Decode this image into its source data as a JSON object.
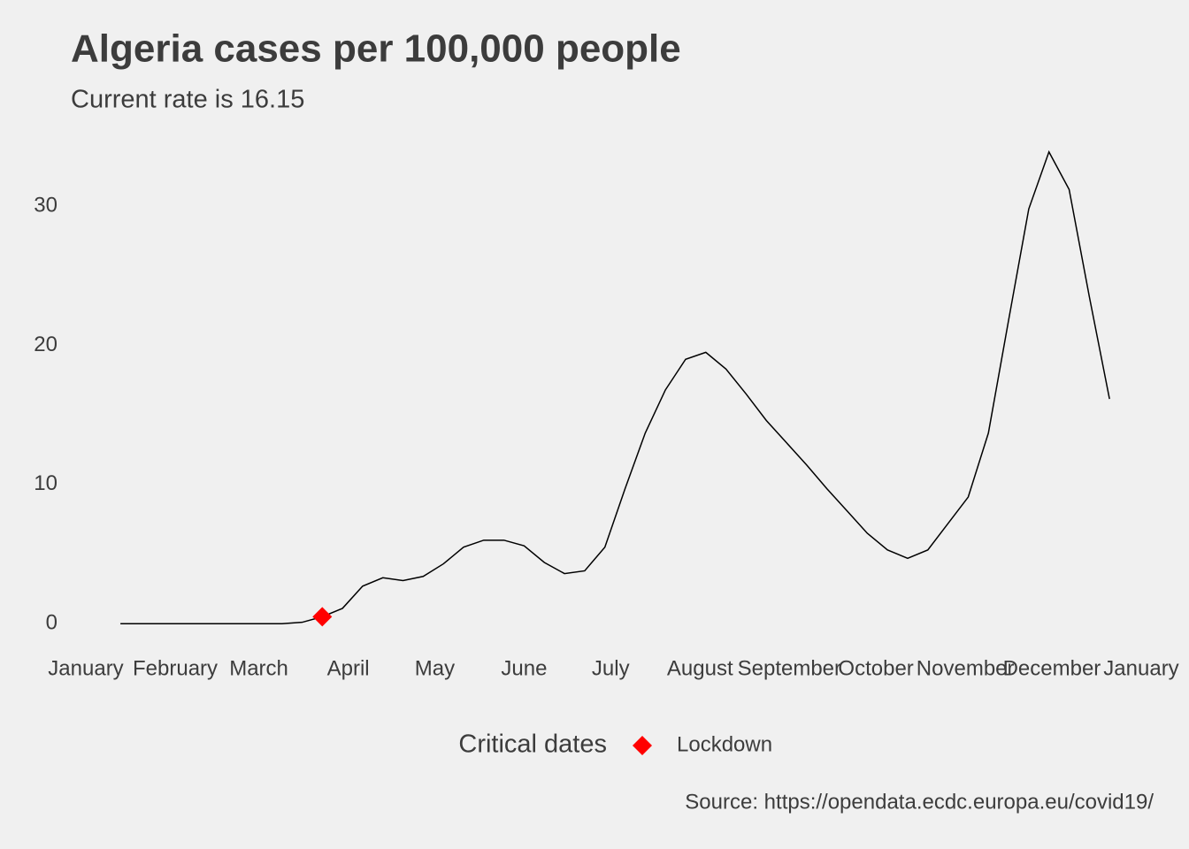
{
  "chart_data": {
    "type": "line",
    "title": "Algeria cases per 100,000 people",
    "subtitle": "Current rate is  16.15",
    "caption": "Source: https://opendata.ecdc.europa.eu/covid19/",
    "legend_title": "Critical dates",
    "x": [
      12,
      19,
      26,
      33,
      40,
      47,
      54,
      61,
      68,
      75,
      82,
      89,
      96,
      103,
      110,
      117,
      124,
      131,
      138,
      145,
      152,
      159,
      166,
      173,
      180,
      187,
      194,
      201,
      208,
      215,
      222,
      229,
      236,
      243,
      250,
      257,
      264,
      271,
      278,
      285,
      292,
      299,
      306,
      313,
      320,
      327,
      334,
      341,
      348,
      355
    ],
    "series": [
      {
        "color": "#000000",
        "values": [
          0,
          0,
          0,
          0,
          0,
          0,
          0,
          0,
          0,
          0.1,
          0.5,
          1.1,
          2.7,
          3.3,
          3.1,
          3.4,
          4.3,
          5.5,
          6.0,
          6.0,
          5.6,
          4.4,
          3.6,
          3.8,
          5.5,
          9.7,
          13.7,
          16.8,
          19.0,
          19.5,
          18.3,
          16.5,
          14.6,
          13.0,
          11.4,
          9.7,
          8.1,
          6.5,
          5.3,
          4.7,
          5.3,
          7.2,
          9.1,
          13.7,
          21.8,
          29.8,
          33.9,
          31.2,
          23.5,
          16.15
        ]
      },
      {
        "name": "Lockdown",
        "color": "#ff0000",
        "x": [
          82
        ],
        "values": [
          0.5
        ]
      }
    ],
    "xlim": [
      0,
      366
    ],
    "xticks": [
      {
        "value": 0,
        "label": "January"
      },
      {
        "value": 31,
        "label": "February"
      },
      {
        "value": 60,
        "label": "March"
      },
      {
        "value": 91,
        "label": "April"
      },
      {
        "value": 121,
        "label": "May"
      },
      {
        "value": 152,
        "label": "June"
      },
      {
        "value": 182,
        "label": "July"
      },
      {
        "value": 213,
        "label": "August"
      },
      {
        "value": 244,
        "label": "September"
      },
      {
        "value": 274,
        "label": "October"
      },
      {
        "value": 305,
        "label": "November"
      },
      {
        "value": 335,
        "label": "December"
      },
      {
        "value": 366,
        "label": "January"
      }
    ],
    "ylim": [
      -1.7,
      35.6
    ],
    "yticks": [
      0,
      10,
      20,
      30
    ],
    "grid": false
  }
}
